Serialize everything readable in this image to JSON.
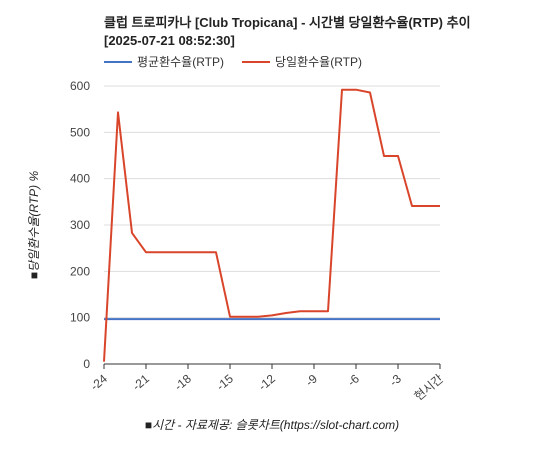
{
  "chart_data": {
    "type": "line",
    "title_line1": "클럽 트로피카나 [Club Tropicana] - 시간별 당일환수율(RTP) 추이",
    "title_line2": "[2025-07-21 08:52:30]",
    "xlabel": "■시간 - 자료제공: 슬롯차트(https://slot-chart.com)",
    "ylabel": "■당일환수율(RTP) %",
    "ylim": [
      0,
      600
    ],
    "yticks": [
      0,
      100,
      200,
      300,
      400,
      500,
      600
    ],
    "xlim": [
      -24,
      0
    ],
    "xticks": [
      {
        "value": -24,
        "label": "-24"
      },
      {
        "value": -21,
        "label": "-21"
      },
      {
        "value": -18,
        "label": "-18"
      },
      {
        "value": -15,
        "label": "-15"
      },
      {
        "value": -12,
        "label": "-12"
      },
      {
        "value": -9,
        "label": "-9"
      },
      {
        "value": -6,
        "label": "-6"
      },
      {
        "value": -3,
        "label": "-3"
      },
      {
        "value": 0,
        "label": "현시간"
      }
    ],
    "grid": "horizontal",
    "legend_position": "top-left",
    "series": [
      {
        "name": "평균환수율(RTP)",
        "color": "#4472c4",
        "points": [
          [
            -24,
            97
          ],
          [
            0,
            97
          ]
        ]
      },
      {
        "name": "당일환수율(RTP)",
        "color": "#d9452b",
        "points": [
          [
            -24,
            5
          ],
          [
            -23,
            543
          ],
          [
            -22,
            283
          ],
          [
            -21,
            241
          ],
          [
            -20,
            241
          ],
          [
            -19,
            241
          ],
          [
            -18,
            241
          ],
          [
            -17,
            241
          ],
          [
            -16,
            241
          ],
          [
            -15,
            102
          ],
          [
            -14,
            102
          ],
          [
            -13,
            102
          ],
          [
            -12,
            105
          ],
          [
            -11,
            110
          ],
          [
            -10,
            114
          ],
          [
            -9,
            114
          ],
          [
            -8,
            114
          ],
          [
            -7,
            592
          ],
          [
            -6,
            592
          ],
          [
            -5,
            586
          ],
          [
            -4,
            449
          ],
          [
            -3,
            449
          ],
          [
            -2,
            341
          ],
          [
            -1,
            341
          ],
          [
            0,
            341
          ]
        ]
      }
    ]
  }
}
